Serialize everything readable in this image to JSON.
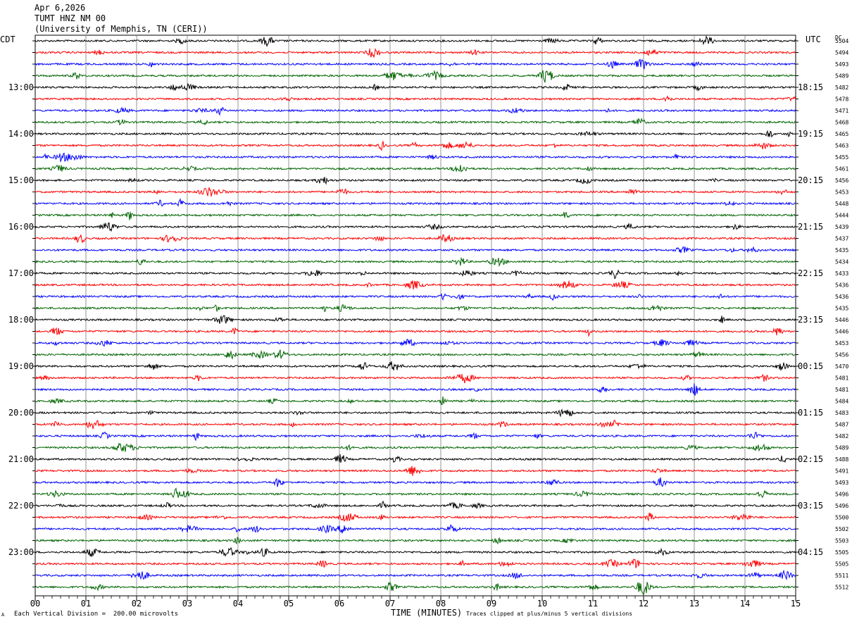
{
  "header": {
    "date": "Apr 6,2026",
    "station": "TUMT HNZ NM 00",
    "network": "(University of Memphis, TN (CERI))"
  },
  "left_tz": "CDT",
  "right_tz": "UTC",
  "dc_label": "DC",
  "footer": {
    "scale_note": "Each Vertical Division =  200.00 microvolts",
    "clip_note": "Traces clipped at plus/minus 5 vertical divisions",
    "corner_mark": "A"
  },
  "colors": [
    "#000000",
    "#ff0000",
    "#0000ff",
    "#006400"
  ],
  "chart_data": {
    "type": "line",
    "title": "",
    "xlabel": "TIME (MINUTES)",
    "xlim": [
      0,
      15
    ],
    "x_ticks": [
      "00",
      "01",
      "02",
      "03",
      "04",
      "05",
      "06",
      "07",
      "08",
      "09",
      "10",
      "11",
      "12",
      "13",
      "14",
      "15"
    ],
    "left_hour_labels": [
      "13:00",
      "14:00",
      "15:00",
      "16:00",
      "17:00",
      "18:00",
      "19:00",
      "20:00",
      "21:00",
      "22:00",
      "23:00"
    ],
    "right_hour_labels": [
      "18:15",
      "19:15",
      "20:15",
      "21:15",
      "22:15",
      "23:15",
      "00:15",
      "01:15",
      "02:15",
      "03:15",
      "04:15"
    ],
    "dc_offsets": [
      5504,
      5494,
      5493,
      5489,
      5482,
      5478,
      5471,
      5468,
      5465,
      5463,
      5455,
      5461,
      5456,
      5453,
      5448,
      5444,
      5439,
      5437,
      5435,
      5434,
      5433,
      5436,
      5436,
      5435,
      5446,
      5446,
      5453,
      5456,
      5470,
      5481,
      5481,
      5484,
      5483,
      5487,
      5482,
      5489,
      5488,
      5491,
      5493,
      5496,
      5496,
      5500,
      5502,
      5503,
      5505,
      5505,
      5511,
      5512
    ],
    "series": [
      {
        "values": "seismic trace lines, 48 rows x 15 minutes"
      }
    ]
  }
}
